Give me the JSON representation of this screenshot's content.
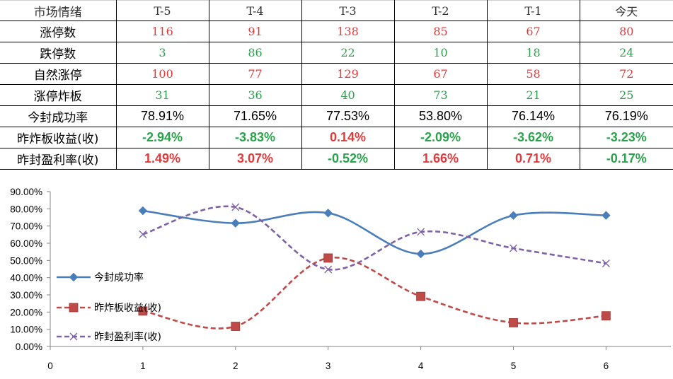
{
  "table": {
    "header": [
      "市场情绪",
      "T-5",
      "T-4",
      "T-3",
      "T-2",
      "T-1",
      "今天"
    ],
    "rows": [
      {
        "label": "涨停数",
        "cells": [
          "116",
          "91",
          "138",
          "85",
          "67",
          "80"
        ],
        "style": "mono",
        "colors": [
          "red",
          "red",
          "red",
          "red",
          "red",
          "red"
        ]
      },
      {
        "label": "跌停数",
        "cells": [
          "3",
          "86",
          "22",
          "10",
          "18",
          "24"
        ],
        "style": "mono",
        "colors": [
          "green",
          "green",
          "green",
          "green",
          "green",
          "green"
        ]
      },
      {
        "label": "自然涨停",
        "cells": [
          "100",
          "77",
          "129",
          "67",
          "58",
          "72"
        ],
        "style": "mono",
        "colors": [
          "red",
          "red",
          "red",
          "red",
          "red",
          "red"
        ]
      },
      {
        "label": "涨停炸板",
        "cells": [
          "31",
          "36",
          "40",
          "73",
          "21",
          "25"
        ],
        "style": "mono",
        "colors": [
          "green",
          "green",
          "green",
          "green",
          "green",
          "green"
        ]
      },
      {
        "label": "今封成功率",
        "cells": [
          "78.91%",
          "71.65%",
          "77.53%",
          "53.80%",
          "76.14%",
          "76.19%"
        ],
        "style": "pct",
        "colors": [
          "black",
          "black",
          "black",
          "black",
          "black",
          "black"
        ]
      },
      {
        "label": "昨炸板收益(收)",
        "cells": [
          "-2.94%",
          "-3.83%",
          "0.14%",
          "-2.09%",
          "-3.62%",
          "-3.23%"
        ],
        "style": "bold",
        "colors": [
          "green",
          "green",
          "red",
          "green",
          "green",
          "green"
        ]
      },
      {
        "label": "昨封盈利率(收)",
        "cells": [
          "1.49%",
          "3.07%",
          "-0.52%",
          "1.66%",
          "0.71%",
          "-0.17%"
        ],
        "style": "bold",
        "colors": [
          "red",
          "red",
          "green",
          "red",
          "red",
          "green"
        ]
      }
    ]
  },
  "chart_data": {
    "type": "line",
    "x": [
      1,
      2,
      3,
      4,
      5,
      6
    ],
    "xlim": [
      0,
      6.7
    ],
    "xticks": [
      "0",
      "1",
      "2",
      "3",
      "4",
      "5",
      "6"
    ],
    "ylim": [
      0,
      90
    ],
    "yticks": [
      "0.00%",
      "10.00%",
      "20.00%",
      "30.00%",
      "40.00%",
      "50.00%",
      "60.00%",
      "70.00%",
      "80.00%",
      "90.00%"
    ],
    "grid": false,
    "legend_position": "left",
    "series": [
      {
        "name": "今封成功率",
        "values": [
          78.91,
          71.65,
          77.53,
          53.8,
          76.14,
          76.19
        ],
        "color": "#4a7ebb",
        "marker": "diamond",
        "dash": "solid"
      },
      {
        "name": "昨炸板收益(收)",
        "values": [
          20.6,
          11.7,
          51.4,
          29.1,
          13.8,
          17.8
        ],
        "color": "#be4b48",
        "marker": "square",
        "dash": "dashed"
      },
      {
        "name": "昨封盈利率(收)",
        "values": [
          65.2,
          81.0,
          44.8,
          66.6,
          57.1,
          48.3
        ],
        "color": "#7f62a4",
        "marker": "x",
        "dash": "dashed"
      }
    ]
  }
}
